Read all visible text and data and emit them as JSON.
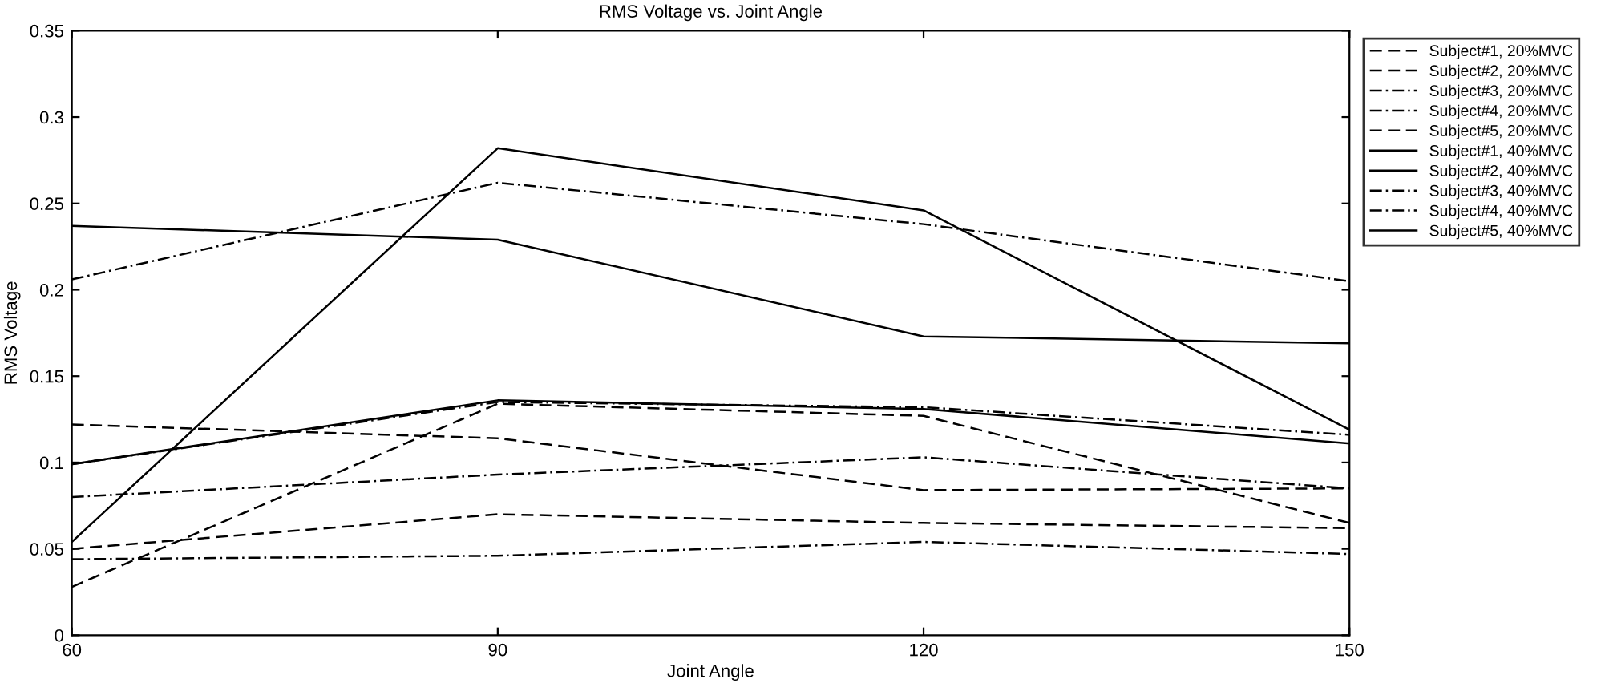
{
  "chart_data": {
    "type": "line",
    "title": "RMS Voltage vs. Joint Angle",
    "xlabel": "Joint Angle",
    "ylabel": "RMS Voltage",
    "x": [
      60,
      90,
      120,
      150
    ],
    "series": [
      {
        "name": "Subject#1, 20%MVC",
        "color": "#000000",
        "line_style": "dashed",
        "values": [
          0.122,
          0.114,
          0.084,
          0.085
        ]
      },
      {
        "name": "Subject#2, 20%MVC",
        "color": "#000000",
        "line_style": "dashed",
        "values": [
          0.05,
          0.07,
          0.065,
          0.062
        ]
      },
      {
        "name": "Subject#3, 20%MVC",
        "color": "#000000",
        "line_style": "dotted",
        "values": [
          0.044,
          0.046,
          0.054,
          0.047
        ]
      },
      {
        "name": "Subject#4, 20%MVC",
        "color": "#000000",
        "line_style": "dotted",
        "values": [
          0.08,
          0.093,
          0.103,
          0.085
        ]
      },
      {
        "name": "Subject#5, 20%MVC",
        "color": "#000000",
        "line_style": "dashed",
        "values": [
          0.028,
          0.134,
          0.127,
          0.065
        ]
      },
      {
        "name": "Subject#1, 40%MVC",
        "color": "#000000",
        "line_style": "solid",
        "values": [
          0.099,
          0.136,
          0.131,
          0.111
        ]
      },
      {
        "name": "Subject#2, 40%MVC",
        "color": "#000000",
        "line_style": "solid",
        "values": [
          0.237,
          0.229,
          0.173,
          0.169
        ]
      },
      {
        "name": "Subject#3, 40%MVC",
        "color": "#000000",
        "line_style": "dotted",
        "values": [
          0.206,
          0.262,
          0.238,
          0.205
        ]
      },
      {
        "name": "Subject#4, 40%MVC",
        "color": "#000000",
        "line_style": "dotted",
        "values": [
          0.099,
          0.135,
          0.132,
          0.116
        ]
      },
      {
        "name": "Subject#5, 40%MVC",
        "color": "#000000",
        "line_style": "solid",
        "values": [
          0.054,
          0.282,
          0.246,
          0.119
        ]
      }
    ],
    "xlim": [
      60,
      150
    ],
    "xticks": [
      60,
      90,
      120,
      150
    ],
    "ylim": [
      0,
      0.35
    ],
    "yticks": [
      0,
      0.05,
      0.1,
      0.15,
      0.2,
      0.25,
      0.3,
      0.35
    ],
    "grid": false,
    "legend": "top right",
    "marker": "none"
  }
}
